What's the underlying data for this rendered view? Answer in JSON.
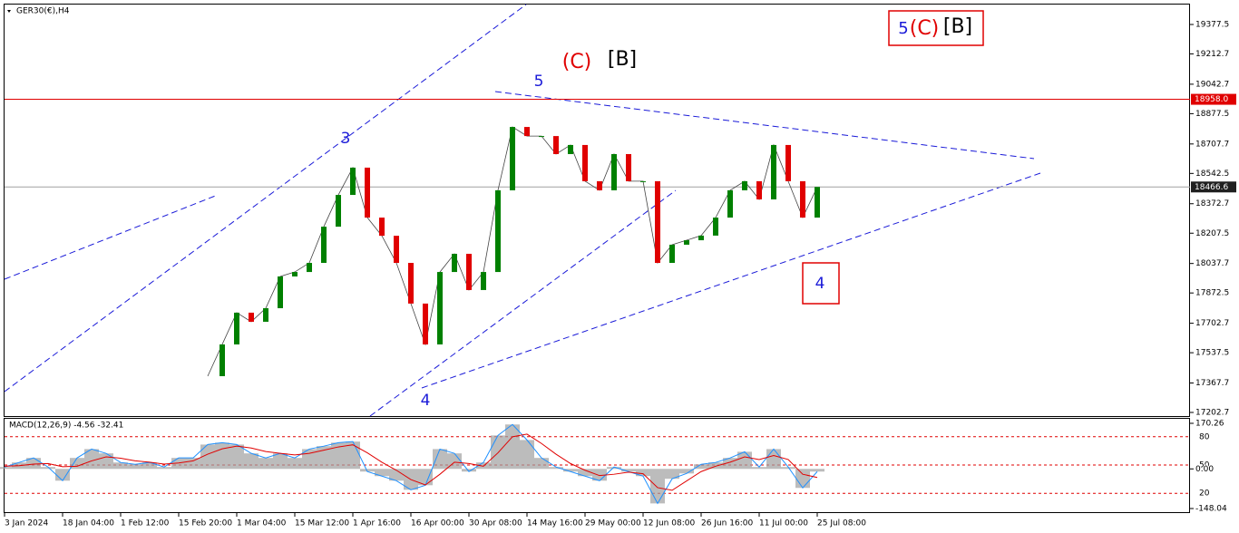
{
  "chart_data": [
    {
      "type": "candlestick",
      "title": "GER30(€),H4",
      "categories": [
        "3 Jan 2024",
        null,
        null,
        null,
        "18 Jan 04:00",
        null,
        null,
        null,
        "1 Feb 12:00",
        null,
        null,
        null,
        "15 Feb 20:00",
        null,
        null,
        null,
        "1 Mar 04:00",
        null,
        null,
        null,
        "15 Mar 12:00",
        null,
        null,
        null,
        "1 Apr 16:00",
        null,
        null,
        null,
        "16 Apr 00:00",
        null,
        null,
        null,
        "30 Apr 08:00",
        null,
        null,
        null,
        "14 May 16:00",
        null,
        null,
        null,
        "29 May 00:00",
        null,
        null,
        null,
        "12 Jun 08:00",
        null,
        null,
        null,
        "26 Jun 16:00",
        null,
        null,
        null,
        "11 Jul 00:00",
        null,
        null,
        null,
        "25 Jul 08:00"
      ],
      "values": [
        null,
        null,
        null,
        null,
        null,
        null,
        null,
        null,
        null,
        null,
        null,
        null,
        null,
        null,
        17406,
        17584,
        17762,
        17711,
        17787,
        17965,
        17990,
        18041,
        18244,
        18422,
        18575,
        18295,
        18193,
        18041,
        17813,
        17584,
        17990,
        18092,
        17889,
        17990,
        18448,
        18803,
        18752,
        18752,
        18651,
        18702,
        18499,
        18448,
        18651,
        18499,
        18499,
        18041,
        18143,
        18168,
        18194,
        18295,
        18448,
        18499,
        18397,
        18702,
        18499,
        18295,
        18466.6
      ],
      "up_color": "#008000",
      "down_color": "#e00000",
      "ylim": [
        17182.4,
        19489.3
      ],
      "yticks": [
        19377.5,
        19212.7,
        19042.7,
        18877.5,
        18707.7,
        18542.5,
        18372.7,
        18207.5,
        18037.7,
        17872.5,
        17702.7,
        17537.5,
        17367.7,
        17202.7
      ],
      "levels": [
        {
          "value": 18958.0,
          "label": "18958.0",
          "color": "#e00000"
        },
        {
          "value": 18466.6,
          "color": "#a0a0a0"
        }
      ],
      "annotations": [
        "3",
        "5",
        "4",
        "4",
        "(C)",
        "[B]",
        "5",
        "(C)",
        "[B]"
      ]
    },
    {
      "type": "macd",
      "title": "MACD(12,26,9) -4.56 -32.41",
      "values": [
        7,
        24,
        41,
        7,
        -44,
        41,
        74,
        58,
        24,
        17,
        24,
        7,
        41,
        41,
        91,
        98,
        91,
        58,
        41,
        58,
        41,
        74,
        85,
        98,
        102,
        -10,
        -27,
        -44,
        -78,
        -61,
        74,
        58,
        -10,
        24,
        125,
        166,
        108,
        41,
        7,
        -10,
        -27,
        -44,
        7,
        -10,
        -27,
        -129,
        -37,
        -17,
        17,
        24,
        41,
        64,
        7,
        74,
        7,
        -71,
        -10
      ],
      "signal": [
        10,
        12,
        18,
        20,
        8,
        10,
        30,
        45,
        40,
        30,
        25,
        18,
        22,
        30,
        55,
        75,
        85,
        78,
        65,
        58,
        52,
        58,
        70,
        82,
        90,
        60,
        25,
        -5,
        -40,
        -60,
        -20,
        25,
        20,
        10,
        60,
        120,
        130,
        95,
        55,
        20,
        -5,
        -25,
        -20,
        -12,
        -18,
        -70,
        -80,
        -45,
        -10,
        10,
        25,
        45,
        35,
        50,
        35,
        -20,
        -32
      ],
      "color": "#a0a0a0",
      "line_color": "#1e90ff",
      "signal_color": "#e00000",
      "ylim": [
        -161.6,
        190.6
      ],
      "yticks": [
        170.26,
        {
          "value": 0,
          "label": "0.00"
        },
        -148.04
      ],
      "levels": [
        80,
        50,
        20
      ],
      "level_lim": [
        0,
        100
      ]
    }
  ]
}
